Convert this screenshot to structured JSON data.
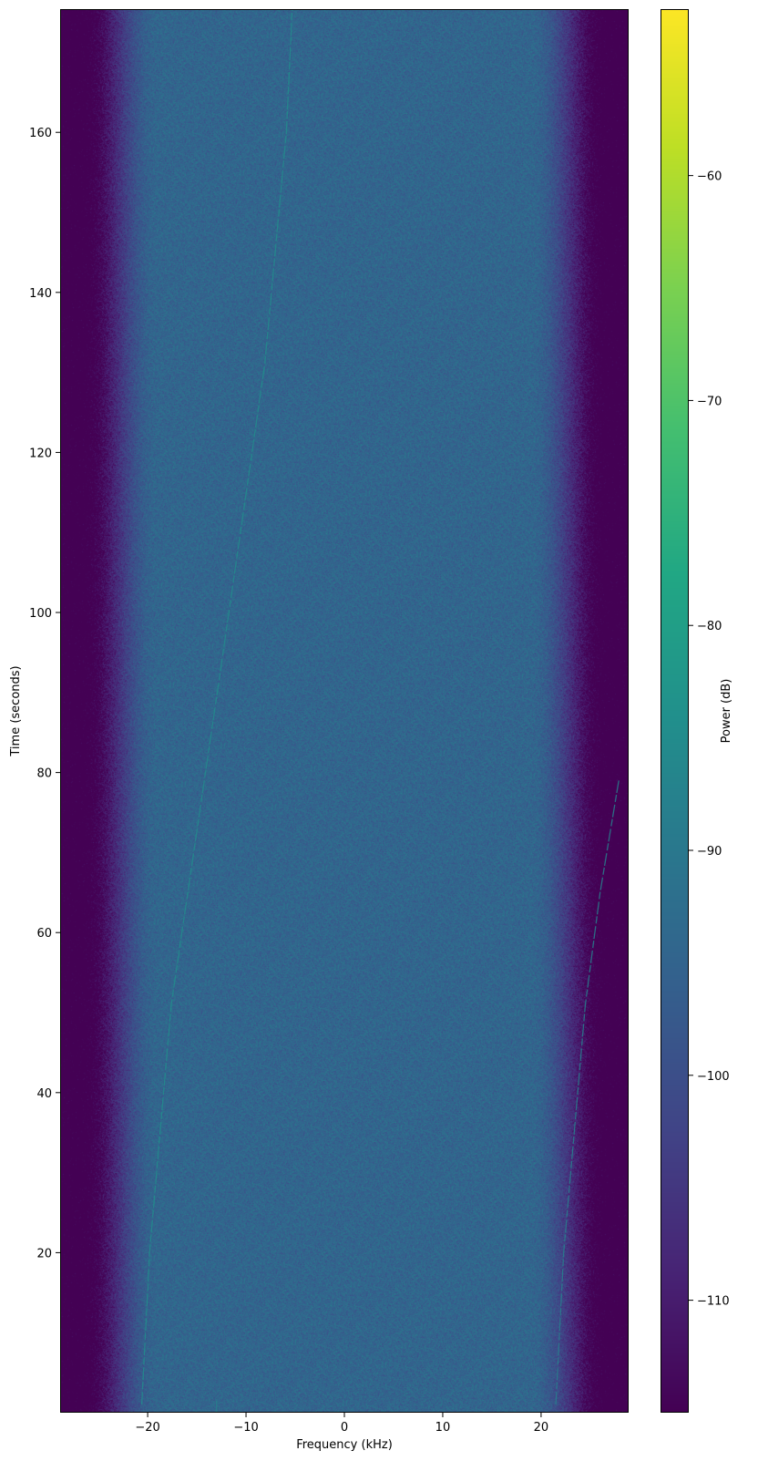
{
  "chart_data": {
    "type": "heatmap",
    "subtype": "spectrogram",
    "title": "",
    "xlabel": "Frequency (kHz)",
    "ylabel": "Time (seconds)",
    "xlim": [
      -28.9,
      28.9
    ],
    "ylim": [
      0,
      175.4
    ],
    "xticks": [
      -20,
      -10,
      0,
      10,
      20
    ],
    "xtick_labels": [
      "−20",
      "−10",
      "0",
      "10",
      "20"
    ],
    "yticks": [
      20,
      40,
      60,
      80,
      100,
      120,
      140,
      160
    ],
    "ytick_labels": [
      "20",
      "40",
      "60",
      "80",
      "100",
      "120",
      "140",
      "160"
    ],
    "grid": false,
    "colormap": "viridis",
    "colorbar": {
      "label": "Power (dB)",
      "range": [
        -115,
        -52.6
      ],
      "ticks": [
        -60,
        -70,
        -80,
        -90,
        -100,
        -110
      ],
      "tick_labels": [
        "−60",
        "−70",
        "−80",
        "−90",
        "−100",
        "−110"
      ]
    },
    "noise_floor_db": -94.5,
    "passband_edge_khz": 19,
    "band_rolloff_to_floor_khz": 27,
    "signals": [
      {
        "power_db": -85,
        "points": [
          [
            -20.6,
            1
          ],
          [
            -19.8,
            20
          ],
          [
            -17.6,
            51
          ],
          [
            -12.8,
            91
          ],
          [
            -8.1,
            131
          ],
          [
            -5.9,
            160
          ],
          [
            -5.3,
            175.4
          ]
        ]
      },
      {
        "power_db": -88,
        "points": [
          [
            21.5,
            1
          ],
          [
            22.3,
            20
          ],
          [
            23.3,
            34
          ],
          [
            24.5,
            51
          ],
          [
            26.0,
            65
          ],
          [
            27.9,
            79
          ]
        ]
      },
      {
        "power_db": -88,
        "points": [
          [
            -13.0,
            0
          ],
          [
            -13.0,
            1.5
          ]
        ]
      }
    ],
    "colors": [
      "#440154",
      "#482475",
      "#414487",
      "#355f8d",
      "#2a788e",
      "#21918c",
      "#22a884",
      "#44bf70",
      "#7ad151",
      "#bddf26",
      "#fde725"
    ]
  }
}
